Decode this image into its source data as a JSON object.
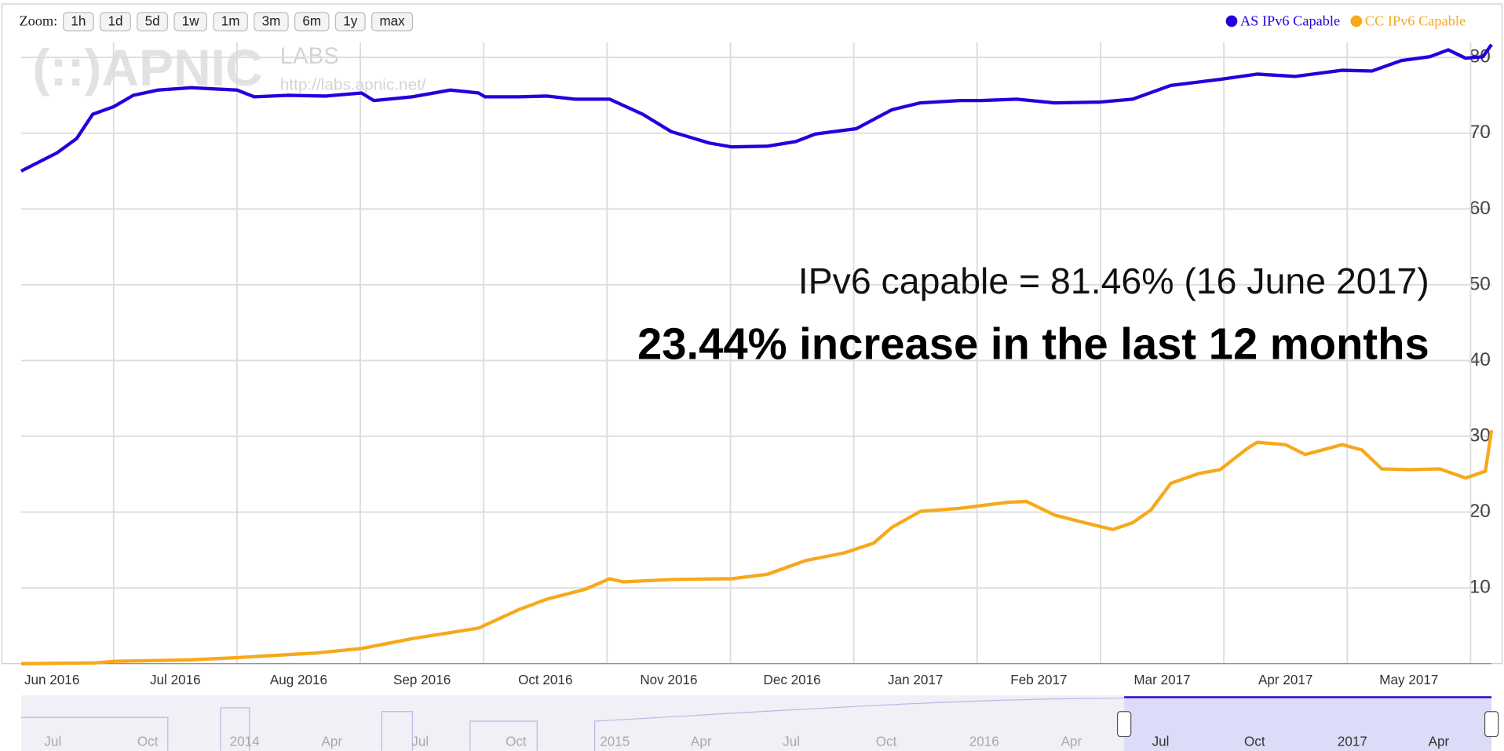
{
  "chart_data": {
    "type": "line",
    "toolbar": {
      "zoom_label": "Zoom:",
      "buttons": [
        "1h",
        "1d",
        "5d",
        "1w",
        "1m",
        "3m",
        "6m",
        "1y",
        "max"
      ]
    },
    "watermark": {
      "logo": "(::)APNIC",
      "labs": "LABS",
      "url": "http://labs.apnic.net/"
    },
    "annotations": [
      "IPv6 capable = 81.46% (16 June 2017)",
      "23.44% increase in the last 12 months"
    ],
    "legend": "top-right",
    "grid": true,
    "xlim": [
      0.25,
      12.17
    ],
    "ylim": [
      0,
      82
    ],
    "xticks": [
      {
        "value": 0,
        "label": "Jun 2016"
      },
      {
        "value": 1,
        "label": "Jul 2016"
      },
      {
        "value": 2,
        "label": "Aug 2016"
      },
      {
        "value": 3,
        "label": "Sep 2016"
      },
      {
        "value": 4,
        "label": "Oct 2016"
      },
      {
        "value": 5,
        "label": "Nov 2016"
      },
      {
        "value": 6,
        "label": "Dec 2016"
      },
      {
        "value": 7,
        "label": "Jan 2017"
      },
      {
        "value": 8,
        "label": "Feb 2017"
      },
      {
        "value": 9,
        "label": "Mar 2017"
      },
      {
        "value": 10,
        "label": "Apr 2017"
      },
      {
        "value": 11,
        "label": "May 2017"
      },
      {
        "value": 12,
        "label": ""
      }
    ],
    "yticks": [
      10,
      20,
      30,
      40,
      50,
      60,
      70,
      80
    ],
    "series": [
      {
        "name": "AS IPv6 Capable",
        "color": "#2200dd",
        "x": [
          0.25,
          0.54,
          0.7,
          0.83,
          1.0,
          1.16,
          1.36,
          1.63,
          2.0,
          2.14,
          2.41,
          2.72,
          3.01,
          3.11,
          3.42,
          3.73,
          3.96,
          4.01,
          4.28,
          4.51,
          4.74,
          5.02,
          5.29,
          5.52,
          5.83,
          6.01,
          6.3,
          6.53,
          6.69,
          7.02,
          7.31,
          7.54,
          7.86,
          8.03,
          8.32,
          8.63,
          8.99,
          9.26,
          9.57,
          9.97,
          10.27,
          10.58,
          10.96,
          11.2,
          11.44,
          11.67,
          11.82,
          11.96,
          12.1,
          12.17
        ],
        "values": [
          65.0,
          67.4,
          69.3,
          72.5,
          73.5,
          75.0,
          75.7,
          76.0,
          75.7,
          74.8,
          75.0,
          74.9,
          75.3,
          74.3,
          74.8,
          75.7,
          75.3,
          74.8,
          74.8,
          74.9,
          74.5,
          74.5,
          72.5,
          70.2,
          68.7,
          68.2,
          68.3,
          68.9,
          69.9,
          70.6,
          73.1,
          74.0,
          74.3,
          74.3,
          74.5,
          74.0,
          74.1,
          74.5,
          76.3,
          77.1,
          77.8,
          77.5,
          78.3,
          78.2,
          79.6,
          80.1,
          81.0,
          79.9,
          80.1,
          81.7
        ]
      },
      {
        "name": "CC IPv6 Capable",
        "color": "#f7a81b",
        "x": [
          0.25,
          0.85,
          1.0,
          1.63,
          2.0,
          2.64,
          3.01,
          3.42,
          3.73,
          3.96,
          4.28,
          4.51,
          4.82,
          5.02,
          5.13,
          5.52,
          5.91,
          6.01,
          6.3,
          6.61,
          6.92,
          7.16,
          7.31,
          7.54,
          7.86,
          8.25,
          8.4,
          8.63,
          8.87,
          9.1,
          9.26,
          9.41,
          9.57,
          9.8,
          9.97,
          10.19,
          10.27,
          10.5,
          10.66,
          10.96,
          11.12,
          11.28,
          11.51,
          11.75,
          11.96,
          12.12,
          12.17
        ],
        "values": [
          0,
          0.1,
          0.3,
          0.5,
          0.8,
          1.4,
          2.0,
          3.3,
          4.1,
          4.7,
          7.1,
          8.5,
          9.8,
          11.2,
          10.8,
          11.1,
          11.2,
          11.2,
          11.8,
          13.6,
          14.6,
          15.9,
          18.0,
          20.1,
          20.5,
          21.3,
          21.4,
          19.6,
          18.6,
          17.7,
          18.6,
          20.3,
          23.8,
          25.1,
          25.6,
          28.4,
          29.2,
          28.9,
          27.6,
          28.9,
          28.2,
          25.7,
          25.6,
          25.7,
          24.5,
          25.4,
          30.8
        ]
      }
    ],
    "navigator": {
      "labels": [
        "Jul",
        "Oct",
        "2014",
        "Apr",
        "Jul",
        "Oct",
        "2015",
        "Apr",
        "Jul",
        "Oct",
        "2016",
        "Apr",
        "Jul",
        "Oct",
        "2017",
        "Apr"
      ]
    }
  }
}
